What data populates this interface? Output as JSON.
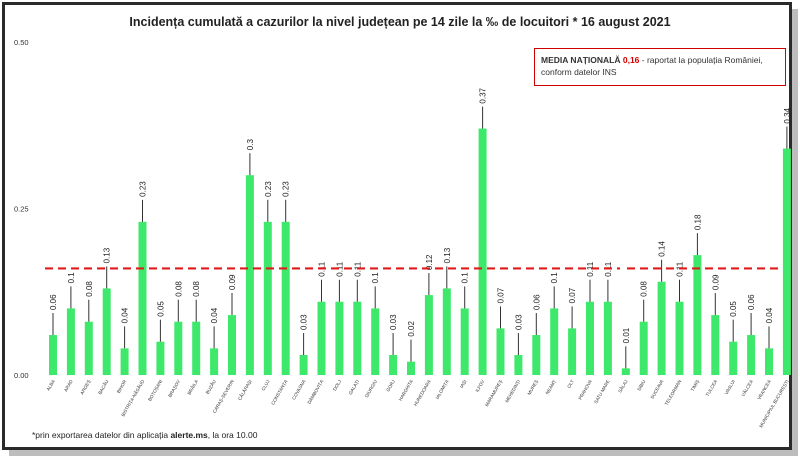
{
  "colors": {
    "bar": "#3ee86a",
    "national_line": "#e01b1b",
    "error_bar": "#333333",
    "axis_text": "#333333"
  },
  "legend": {
    "label": "MEDIA NAȚIONALĂ",
    "value": "0,16",
    "text1": " - raportat la populația României,",
    "text2": "conform datelor INS"
  },
  "footnote": {
    "prefix": "*prin exportarea datelor din aplicația ",
    "app": "alerte.ms",
    "suffix": ", la ora 10.00"
  },
  "chart_data": {
    "type": "bar",
    "title": "Incidența cumulată a cazurilor la nivel județean pe 14 zile la ‰ de locuitori *  16 august 2021",
    "xlabel": "",
    "ylabel": "",
    "ylim": [
      0,
      0.5
    ],
    "yticks": [
      "0.00",
      "0.25",
      "0.50"
    ],
    "grid": false,
    "reference_line": {
      "name": "MEDIA NAȚIONALĂ",
      "value": 0.16
    },
    "categories": [
      "ALBA",
      "ARAD",
      "ARGEȘ",
      "BACĂU",
      "BIHOR",
      "BISTRIȚA-NĂSĂUD",
      "BOTOȘANI",
      "BRAȘOV",
      "BRĂILA",
      "BUZĂU",
      "CARAȘ-SEVERIN",
      "CĂLĂRAȘI",
      "CLUJ",
      "CONSTANȚA",
      "COVASNA",
      "DÂMBOVIȚA",
      "DOLJ",
      "GALAȚI",
      "GIURGIU",
      "GORJ",
      "HARGHITA",
      "HUNEDOARA",
      "IALOMIȚA",
      "IAȘI",
      "ILFOV",
      "MARAMUREȘ",
      "MEHEDINȚI",
      "MUREȘ",
      "NEAMȚ",
      "OLT",
      "PRAHOVA",
      "SATU MARE",
      "SĂLAJ",
      "SIBIU",
      "SUCEAVA",
      "TELEORMAN",
      "TIMIȘ",
      "TULCEA",
      "VASLUI",
      "VÂLCEA",
      "VRANCEA",
      "MUNICIPIUL BUCUREȘTI"
    ],
    "values": [
      0.06,
      0.1,
      0.08,
      0.13,
      0.04,
      0.23,
      0.05,
      0.08,
      0.08,
      0.04,
      0.09,
      0.3,
      0.23,
      0.23,
      0.03,
      0.11,
      0.11,
      0.11,
      0.1,
      0.03,
      0.02,
      0.12,
      0.13,
      0.1,
      0.37,
      0.07,
      0.03,
      0.06,
      0.1,
      0.07,
      0.11,
      0.11,
      0.01,
      0.08,
      0.14,
      0.11,
      0.18,
      0.09,
      0.05,
      0.06,
      0.04,
      0.34
    ],
    "labels": [
      "0.06",
      "0.1",
      "0.08",
      "0.13",
      "0.04",
      "0.23",
      "0.05",
      "0.08",
      "0.08",
      "0.04",
      "0.09",
      "0.3",
      "0.23",
      "0.23",
      "0.03",
      "0.11",
      "0.11",
      "0.11",
      "0.1",
      "0.03",
      "0.02",
      "0.12",
      "0.13",
      "0.1",
      "0.37",
      "0.07",
      "0.03",
      "0.06",
      "0.1",
      "0.07",
      "0.11",
      "0.11",
      "0.01",
      "0.08",
      "0.14",
      "0.11",
      "0.18",
      "0.09",
      "0.05",
      "0.06",
      "0.04",
      "0.34"
    ]
  }
}
